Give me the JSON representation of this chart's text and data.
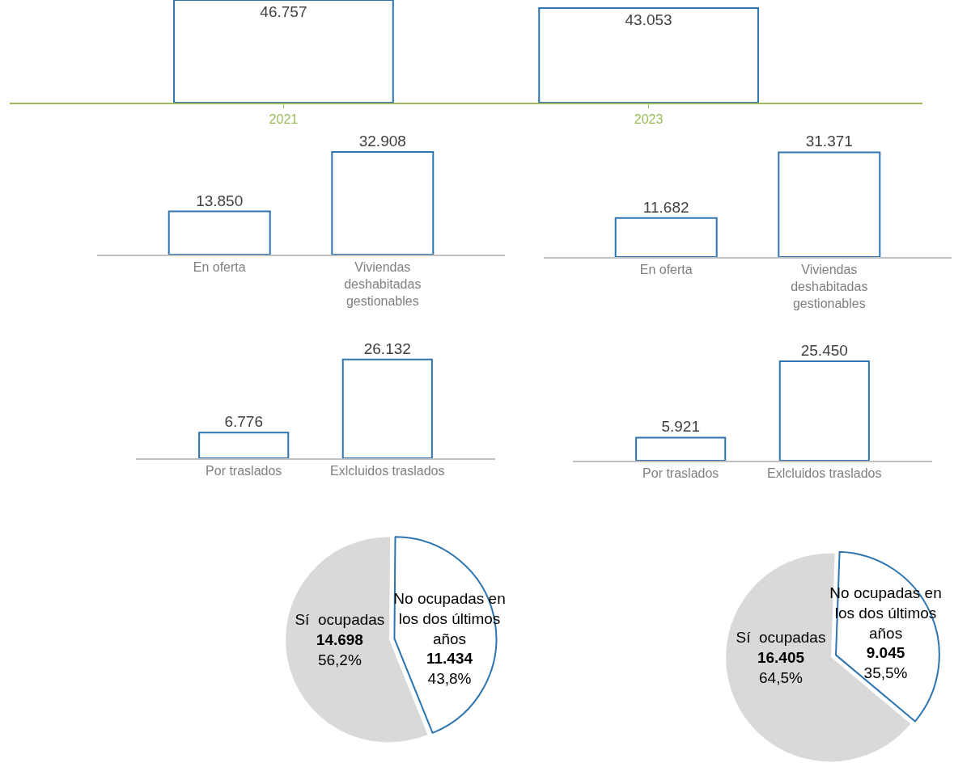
{
  "chart_data": [
    {
      "type": "bar",
      "categories": [
        "2021",
        "2023"
      ],
      "values": [
        46757,
        43053
      ],
      "value_labels": [
        "46.757",
        "43.053"
      ],
      "color": "#2e75b0"
    },
    {
      "type": "bar",
      "categories": [
        "En oferta",
        "Viviendas deshabitadas gestionables"
      ],
      "values": [
        13850,
        32908
      ],
      "value_labels": [
        "13.850",
        "32.908"
      ],
      "color": "#2e75b0"
    },
    {
      "type": "bar",
      "categories": [
        "En oferta",
        "Viviendas deshabitadas gestionables"
      ],
      "values": [
        11682,
        31371
      ],
      "value_labels": [
        "11.682",
        "31.371"
      ],
      "color": "#2e75b0"
    },
    {
      "type": "bar",
      "categories": [
        "Por traslados",
        "Exlcluidos traslados"
      ],
      "values": [
        6776,
        26132
      ],
      "value_labels": [
        "6.776",
        "26.132"
      ],
      "color": "#2e75b0"
    },
    {
      "type": "bar",
      "categories": [
        "Por traslados",
        "Exlcluidos traslados"
      ],
      "values": [
        5921,
        25450
      ],
      "value_labels": [
        "5.921",
        "25.450"
      ],
      "color": "#2e75b0"
    },
    {
      "type": "pie",
      "categories": [
        "Sí  ocupadas",
        "No ocupadas en los dos últimos años"
      ],
      "values": [
        14698,
        11434
      ],
      "value_labels": [
        "14.698\n56,2%",
        "11.434\n43,8%"
      ],
      "colors": [
        "#d9d9d9",
        "#ffffff"
      ]
    },
    {
      "type": "pie",
      "categories": [
        "Sí  ocupadas",
        "No ocupadas en los dos últimos años"
      ],
      "values": [
        16405,
        9045
      ],
      "value_labels": [
        "16.405\n64,5%",
        "9.045\n35,5%"
      ],
      "colors": [
        "#d9d9d9",
        "#ffffff"
      ]
    }
  ]
}
